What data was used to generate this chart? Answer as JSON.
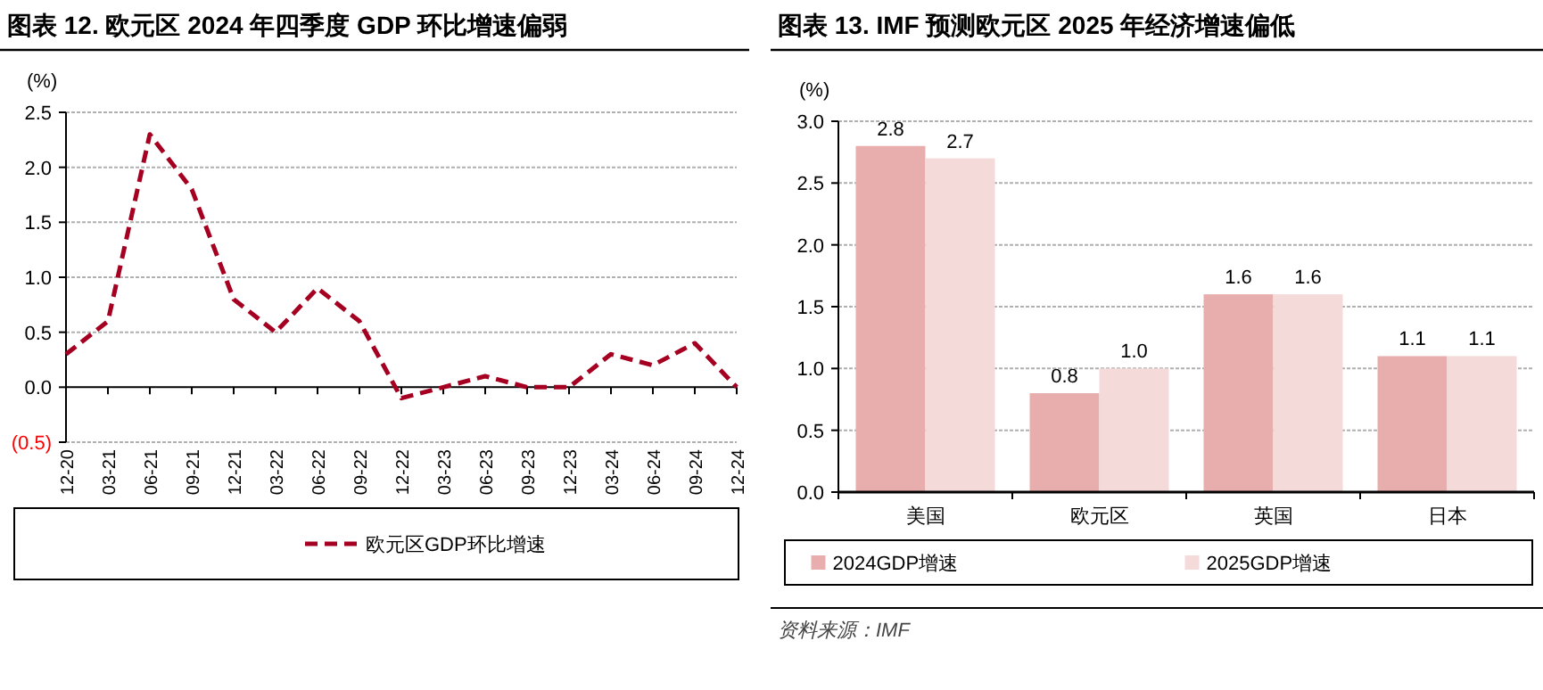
{
  "chart_data": [
    {
      "type": "line",
      "title": "图表 12. 欧元区 2024 年四季度 GDP 环比增速偏弱",
      "ylabel": "(%)",
      "categories": [
        "12-20",
        "03-21",
        "06-21",
        "09-21",
        "12-21",
        "03-22",
        "06-22",
        "09-22",
        "12-22",
        "03-23",
        "06-23",
        "09-23",
        "12-23",
        "03-24",
        "06-24",
        "09-24",
        "12-24"
      ],
      "series": [
        {
          "name": "欧元区GDP环比增速",
          "color": "#a50021",
          "values": [
            0.3,
            0.6,
            2.3,
            1.8,
            0.8,
            0.5,
            0.9,
            0.6,
            -0.1,
            0.0,
            0.1,
            0.0,
            0.0,
            0.3,
            0.2,
            0.4,
            0.0
          ]
        }
      ],
      "ylim": [
        -0.5,
        2.5
      ],
      "yticks": [
        {
          "value": -0.5,
          "label": "(0.5)"
        },
        {
          "value": 0,
          "label": "0.0"
        },
        {
          "value": 0.5,
          "label": "0.5"
        },
        {
          "value": 1,
          "label": "1.0"
        },
        {
          "value": 1.5,
          "label": "1.5"
        },
        {
          "value": 2,
          "label": "2.0"
        },
        {
          "value": 2.5,
          "label": "2.5"
        }
      ],
      "grid": "y",
      "legend": "bottom",
      "line_style": "dashed",
      "marker": "none"
    },
    {
      "type": "bar",
      "title": "图表 13. IMF 预测欧元区 2025 年经济增速偏低",
      "ylabel": "(%)",
      "categories": [
        "美国",
        "欧元区",
        "英国",
        "日本"
      ],
      "series": [
        {
          "name": "2024GDP增速",
          "color": "#e8adad",
          "values": [
            2.8,
            0.8,
            1.6,
            1.1
          ],
          "value_labels": [
            "2.8",
            "0.8",
            "1.6",
            "1.1"
          ]
        },
        {
          "name": "2025GDP增速",
          "color": "#f5dada",
          "values": [
            2.7,
            1.0,
            1.6,
            1.1
          ],
          "value_labels": [
            "2.7",
            "1.0",
            "1.6",
            "1.1"
          ]
        }
      ],
      "ylim": [
        0,
        3
      ],
      "yticks": [
        {
          "value": 0,
          "label": "0.0"
        },
        {
          "value": 0.5,
          "label": "0.5"
        },
        {
          "value": 1,
          "label": "1.0"
        },
        {
          "value": 1.5,
          "label": "1.5"
        },
        {
          "value": 2,
          "label": "2.0"
        },
        {
          "value": 2.5,
          "label": "2.5"
        },
        {
          "value": 3,
          "label": "3.0"
        }
      ],
      "grid": "y",
      "legend": "bottom",
      "annotations": [
        "资料来源：IMF"
      ]
    }
  ]
}
